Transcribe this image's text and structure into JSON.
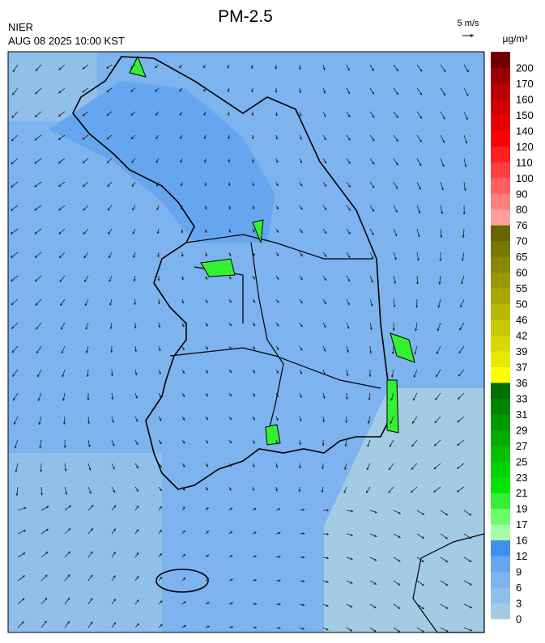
{
  "header": {
    "title": "PM-2.5",
    "source": "NIER",
    "timestamp": "AUG 08 2025 10:00 KST",
    "wind_scale": "5 m/s",
    "unit": "μg/m³"
  },
  "colorbar": {
    "labels": [
      0,
      3,
      6,
      9,
      12,
      16,
      17,
      19,
      21,
      23,
      25,
      27,
      29,
      31,
      33,
      36,
      37,
      39,
      42,
      46,
      50,
      55,
      60,
      65,
      70,
      76,
      80,
      90,
      100,
      110,
      120,
      140,
      150,
      160,
      170,
      200
    ],
    "colors": [
      "#a3cbe3",
      "#8fbfea",
      "#7db3ee",
      "#66a6f0",
      "#3f8ff0",
      "#a6ffa6",
      "#6cff6c",
      "#33f033",
      "#00e600",
      "#00d400",
      "#00c000",
      "#00ac00",
      "#009800",
      "#008400",
      "#006e00",
      "#ffff00",
      "#e8e800",
      "#d8d800",
      "#c8c800",
      "#b8b800",
      "#a8a800",
      "#989800",
      "#888800",
      "#787800",
      "#686400",
      "#ff9f9f",
      "#ff7f7f",
      "#ff5f5f",
      "#ff3f3f",
      "#ff1f1f",
      "#ff0000",
      "#e80000",
      "#d00000",
      "#b80000",
      "#9a0000",
      "#6e0000"
    ]
  }
}
